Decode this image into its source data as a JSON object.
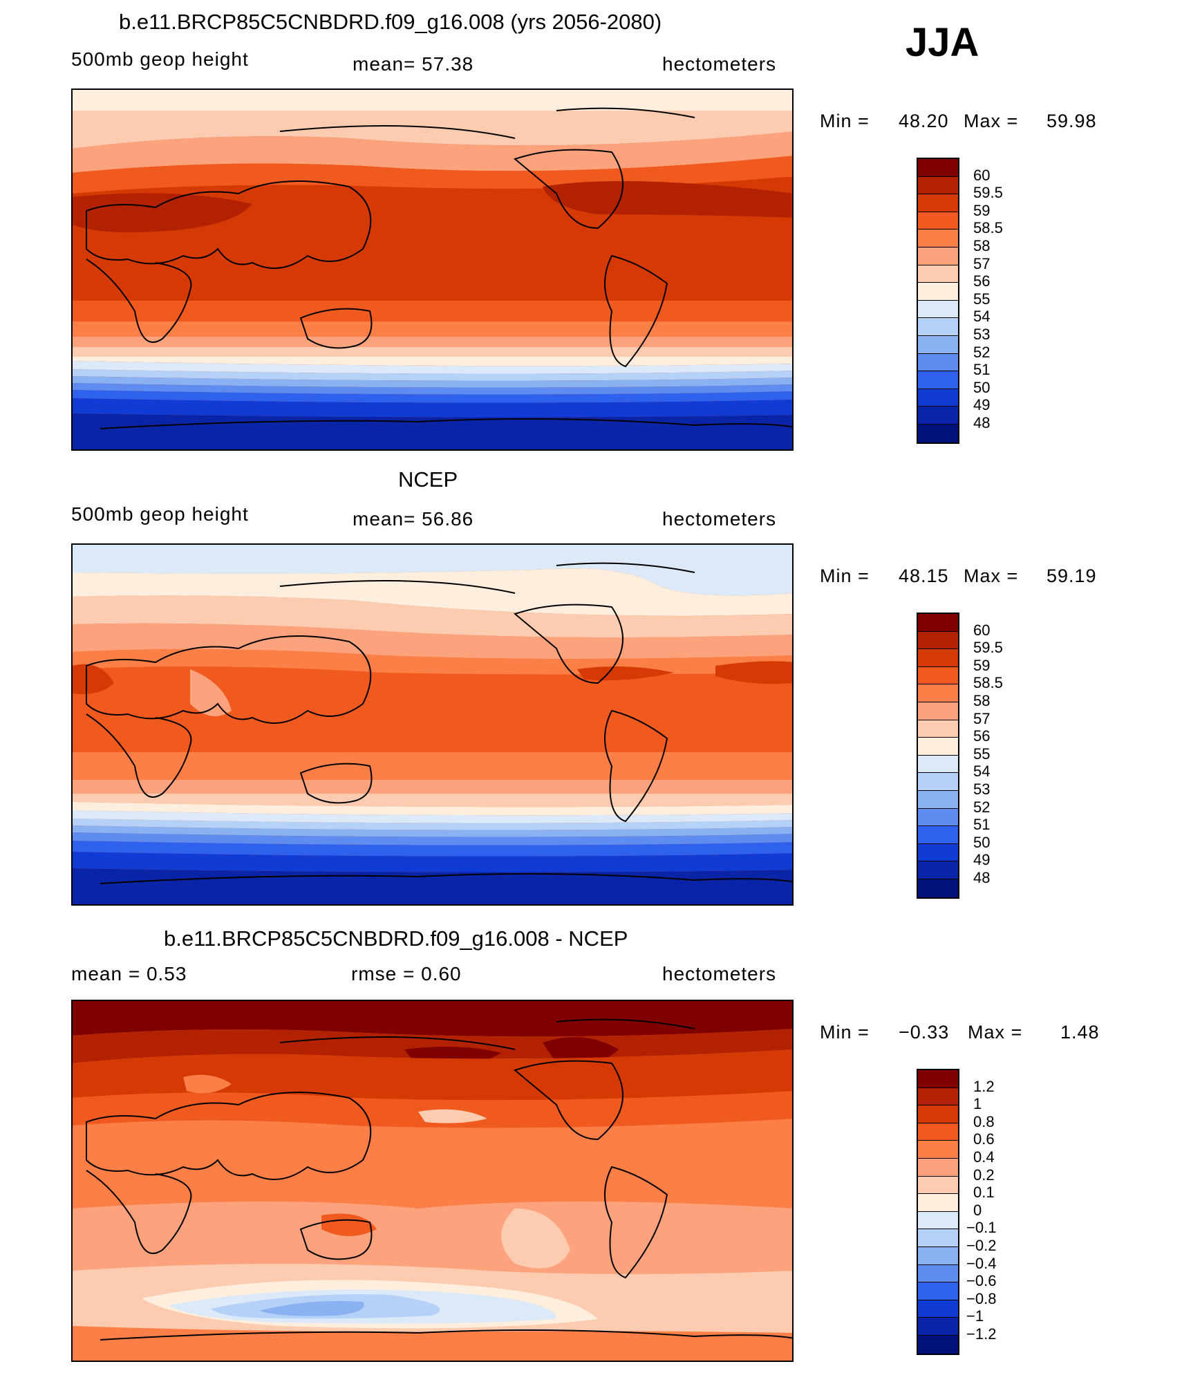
{
  "season": "JJA",
  "panels": [
    {
      "title": "b.e11.BRCP85C5CNBDRD.f09_g16.008 (yrs 2056-2080)",
      "left_label": "500mb  geop  height",
      "center_label": "mean=   57.38",
      "right_label": "hectometers",
      "min_label": "Min  =",
      "min_value": "48.20",
      "max_label": "Max  =",
      "max_value": "59.98",
      "colorbar": {
        "labels": [
          "60",
          "59.5",
          "59",
          "58.5",
          "58",
          "57",
          "56",
          "55",
          "54",
          "53",
          "52",
          "51",
          "50",
          "49",
          "48"
        ],
        "colors": [
          "#800000",
          "#b22200",
          "#d63a04",
          "#f05a1e",
          "#fb7f46",
          "#fca37d",
          "#fdcbaf",
          "#feeedd",
          "#dbe9f8",
          "#b6d1f7",
          "#8ab2f2",
          "#5e8cf0",
          "#2e62ee",
          "#103bd4",
          "#0a24a8",
          "#00127a"
        ]
      }
    },
    {
      "title": "NCEP",
      "left_label": "500mb  geop  height",
      "center_label": "mean=   56.86",
      "right_label": "hectometers",
      "min_label": "Min  =",
      "min_value": "48.15",
      "max_label": "Max  =",
      "max_value": "59.19",
      "colorbar": {
        "labels": [
          "60",
          "59.5",
          "59",
          "58.5",
          "58",
          "57",
          "56",
          "55",
          "54",
          "53",
          "52",
          "51",
          "50",
          "49",
          "48"
        ],
        "colors": [
          "#800000",
          "#b22200",
          "#d63a04",
          "#f05a1e",
          "#fb7f46",
          "#fca37d",
          "#fdcbaf",
          "#feeedd",
          "#dbe9f8",
          "#b6d1f7",
          "#8ab2f2",
          "#5e8cf0",
          "#2e62ee",
          "#103bd4",
          "#0a24a8",
          "#00127a"
        ]
      }
    },
    {
      "title": "b.e11.BRCP85C5CNBDRD.f09_g16.008 - NCEP",
      "left_label": "mean  =      0.53",
      "center_label": "rmse  =      0.60",
      "right_label": "hectometers",
      "min_label": "Min  =",
      "min_value": "−0.33",
      "max_label": "Max  =",
      "max_value": "1.48",
      "colorbar": {
        "labels": [
          "1.2",
          "1",
          "0.8",
          "0.6",
          "0.4",
          "0.2",
          "0.1",
          "0",
          "−0.1",
          "−0.2",
          "−0.4",
          "−0.6",
          "−0.8",
          "−1",
          "−1.2"
        ],
        "colors": [
          "#800000",
          "#b22200",
          "#d63a04",
          "#f05a1e",
          "#fb7f46",
          "#fca37d",
          "#fdcbaf",
          "#feeedd",
          "#dbe9f8",
          "#b6d1f7",
          "#8ab2f2",
          "#5e8cf0",
          "#2e62ee",
          "#103bd4",
          "#0a24a8",
          "#00127a"
        ]
      }
    }
  ]
}
